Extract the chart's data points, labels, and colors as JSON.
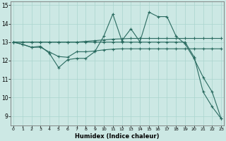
{
  "xlabel": "Humidex (Indice chaleur)",
  "background_color": "#cce8e4",
  "grid_color": "#aad4ce",
  "line_color": "#2a6b60",
  "x_values": [
    0,
    1,
    2,
    3,
    4,
    5,
    6,
    7,
    8,
    9,
    10,
    11,
    12,
    13,
    14,
    15,
    16,
    17,
    18,
    19,
    20,
    21,
    22,
    23
  ],
  "series": [
    [
      13.0,
      12.88,
      12.72,
      12.78,
      12.38,
      11.62,
      12.05,
      12.12,
      12.12,
      12.48,
      13.32,
      14.52,
      13.08,
      13.72,
      13.02,
      14.62,
      14.38,
      14.38,
      13.32,
      12.9,
      12.1,
      11.1,
      10.3,
      8.85
    ],
    [
      13.0,
      13.0,
      13.0,
      13.0,
      13.0,
      13.0,
      13.0,
      13.0,
      13.04,
      13.08,
      13.12,
      13.16,
      13.18,
      13.2,
      13.2,
      13.2,
      13.2,
      13.2,
      13.2,
      13.2,
      13.2,
      13.2,
      13.2,
      13.2
    ],
    [
      13.0,
      12.88,
      12.72,
      12.72,
      12.46,
      12.22,
      12.18,
      12.48,
      12.48,
      12.52,
      12.58,
      12.62,
      12.64,
      12.64,
      12.64,
      12.64,
      12.64,
      12.64,
      12.64,
      12.64,
      12.64,
      12.64,
      12.64,
      12.64
    ],
    [
      13.0,
      13.0,
      13.0,
      13.0,
      13.0,
      13.0,
      13.0,
      13.0,
      13.0,
      13.0,
      13.0,
      13.0,
      13.0,
      13.0,
      13.0,
      13.0,
      13.0,
      13.0,
      13.0,
      13.0,
      12.2,
      10.3,
      9.5,
      8.85
    ]
  ],
  "ylim": [
    8.5,
    15.2
  ],
  "ytick_positions": [
    9,
    10,
    11,
    12,
    13,
    14,
    15
  ],
  "ytick_labels": [
    "9",
    "10",
    "11",
    "12",
    "13",
    "14",
    "15"
  ],
  "xtick_labels": [
    "0",
    "1",
    "2",
    "3",
    "4",
    "5",
    "6",
    "7",
    "8",
    "9",
    "10",
    "11",
    "12",
    "13",
    "14",
    "15",
    "16",
    "17",
    "18",
    "19",
    "20",
    "21",
    "22",
    "23"
  ],
  "marker": "+",
  "marker_size": 3,
  "linewidth": 0.8
}
